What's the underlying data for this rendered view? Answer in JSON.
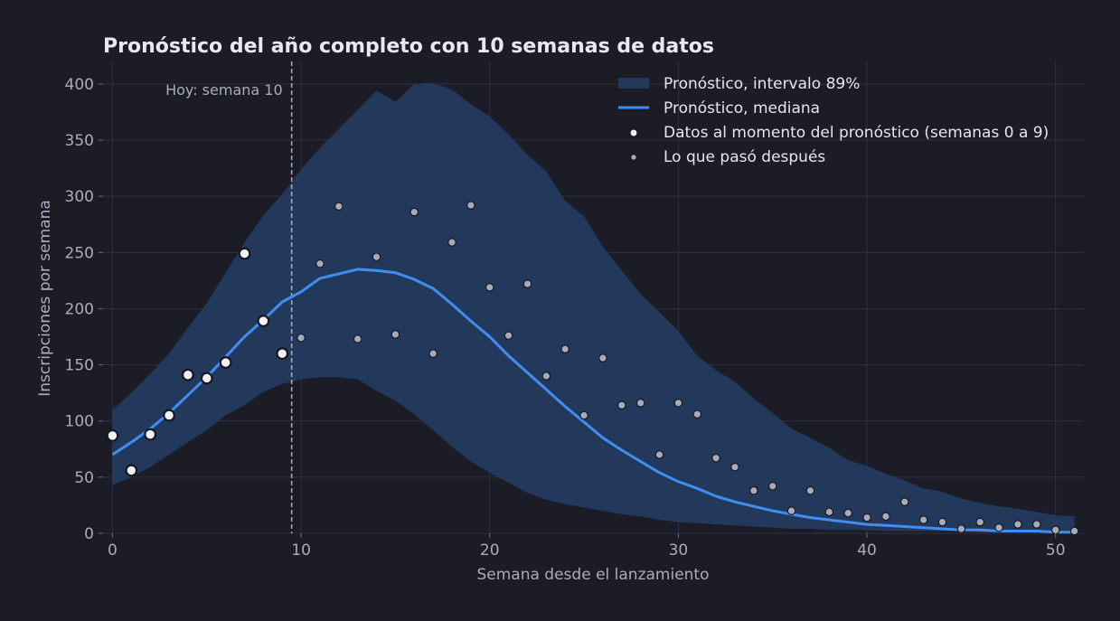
{
  "chart_data": {
    "type": "line",
    "title": "Pronóstico del año completo con 10 semanas de datos",
    "xlabel": "Semana desde el lanzamiento",
    "ylabel": "Inscripciones por semana",
    "xlim": [
      -0.5,
      51.5
    ],
    "ylim": [
      0,
      420
    ],
    "xticks": [
      0,
      10,
      20,
      30,
      40,
      50
    ],
    "yticks": [
      0,
      50,
      100,
      150,
      200,
      250,
      300,
      350,
      400
    ],
    "grid": true,
    "legend_position": "top-right",
    "colors": {
      "background": "#1b1c26",
      "interval": "#22395c",
      "median": "#3f8ef0",
      "observed_face": "#f2f2f6",
      "after_face": "#a7aab9",
      "marker_edge": "#161820",
      "today_line": "#a9acbf"
    },
    "annotation": {
      "text": "Hoy: semana 10",
      "x": 9.5
    },
    "legend": [
      {
        "key": "interval",
        "label": "Pronóstico, intervalo 89%"
      },
      {
        "key": "median",
        "label": "Pronóstico, mediana"
      },
      {
        "key": "observed",
        "label": "Datos al momento del pronóstico (semanas 0 a 9)"
      },
      {
        "key": "after",
        "label": "Lo que pasó después"
      }
    ],
    "x": [
      0,
      1,
      2,
      3,
      4,
      5,
      6,
      7,
      8,
      9,
      10,
      11,
      12,
      13,
      14,
      15,
      16,
      17,
      18,
      19,
      20,
      21,
      22,
      23,
      24,
      25,
      26,
      27,
      28,
      29,
      30,
      31,
      32,
      33,
      34,
      35,
      36,
      37,
      38,
      39,
      40,
      41,
      42,
      43,
      44,
      45,
      46,
      47,
      48,
      49,
      50,
      51
    ],
    "series": [
      {
        "key": "interval",
        "name": "Pronóstico, intervalo 89%",
        "lower": [
          43,
          50,
          59,
          70,
          81,
          92,
          105,
          114,
          126,
          133,
          137,
          139,
          139,
          137,
          127,
          118,
          106,
          92,
          77,
          64,
          54,
          45,
          36,
          30,
          26,
          23,
          20,
          17,
          15,
          12,
          10,
          9,
          8,
          7,
          6,
          5,
          4,
          4,
          3,
          3,
          3,
          2,
          2,
          2,
          2,
          2,
          1,
          1,
          1,
          1,
          1,
          1
        ],
        "upper": [
          110,
          125,
          142,
          160,
          183,
          205,
          232,
          259,
          283,
          302,
          324,
          343,
          360,
          377,
          394,
          384,
          400,
          401,
          395,
          382,
          371,
          355,
          337,
          322,
          296,
          282,
          255,
          234,
          213,
          197,
          180,
          158,
          145,
          135,
          120,
          107,
          93,
          85,
          76,
          65,
          60,
          53,
          47,
          40,
          37,
          31,
          27,
          24,
          22,
          19,
          16,
          15
        ]
      },
      {
        "key": "median",
        "name": "Pronóstico, mediana",
        "values": [
          70,
          81,
          93,
          107,
          123,
          139,
          157,
          175,
          190,
          206,
          215,
          227,
          231,
          235,
          234,
          232,
          226,
          218,
          204,
          189,
          175,
          158,
          143,
          128,
          113,
          99,
          85,
          74,
          64,
          54,
          46,
          40,
          33,
          28,
          24,
          20,
          17,
          14,
          12,
          10,
          8,
          7,
          6,
          5,
          4,
          3,
          3,
          2,
          2,
          2,
          1,
          1
        ]
      },
      {
        "key": "observed",
        "name": "Datos al momento del pronóstico (semanas 0 a 9)",
        "x": [
          0,
          1,
          2,
          3,
          4,
          5,
          6,
          7,
          8,
          9
        ],
        "values": [
          87,
          56,
          88,
          105,
          141,
          138,
          152,
          249,
          189,
          160
        ]
      },
      {
        "key": "after",
        "name": "Lo que pasó después",
        "x": [
          10,
          11,
          12,
          13,
          14,
          15,
          16,
          17,
          18,
          19,
          20,
          21,
          22,
          23,
          24,
          25,
          26,
          27,
          28,
          29,
          30,
          31,
          32,
          33,
          34,
          35,
          36,
          37,
          38,
          39,
          40,
          41,
          42,
          43,
          44,
          45,
          46,
          47,
          48,
          49,
          50,
          51
        ],
        "values": [
          174,
          240,
          291,
          173,
          246,
          177,
          286,
          160,
          259,
          292,
          219,
          176,
          222,
          140,
          164,
          105,
          156,
          114,
          116,
          70,
          116,
          106,
          67,
          59,
          38,
          42,
          20,
          38,
          19,
          18,
          14,
          15,
          28,
          12,
          10,
          4,
          10,
          5,
          8,
          8,
          3,
          2
        ]
      }
    ]
  }
}
